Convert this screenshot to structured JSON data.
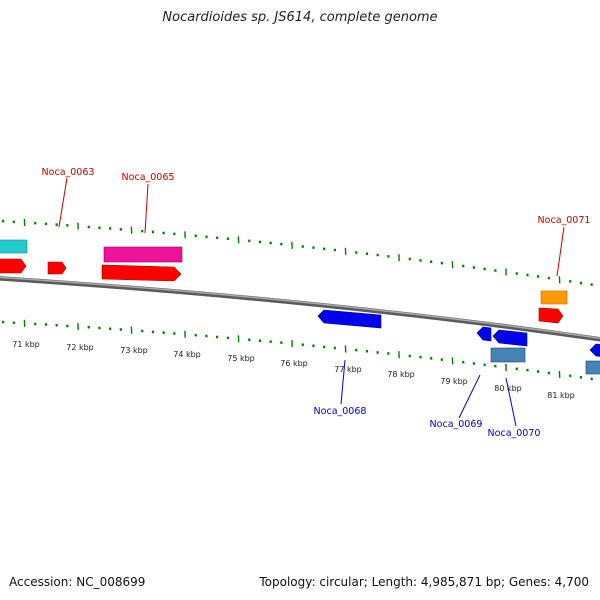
{
  "title": "Nocardioides sp. JS614, complete genome",
  "footer": {
    "accession": "Accession: NC_008699",
    "summary": "Topology: circular; Length: 4,985,871 bp; Genes: 4,700"
  },
  "colors": {
    "backbone": "#808080",
    "tick": "#008000",
    "label_forward": "#cc0000",
    "label_reverse": "#0000cc",
    "cds_red": "#ff0000",
    "cds_magenta": "#ee1199",
    "cds_cyan": "#22cccc",
    "cds_orange": "#ff9900",
    "cds_blue": "#0000ee",
    "cds_steelblue": "#4682b4"
  },
  "scale_labels": [
    "71 kbp",
    "72 kbp",
    "73 kbp",
    "74 kbp",
    "75 kbp",
    "76 kbp",
    "77 kbp",
    "78 kbp",
    "79 kbp",
    "80 kbp",
    "81 kbp"
  ],
  "gene_labels": {
    "forward": [
      "Noca_0063",
      "Noca_0065",
      "Noca_0071"
    ],
    "reverse": [
      "Noca_0068",
      "Noca_0069",
      "Noca_0070"
    ]
  }
}
